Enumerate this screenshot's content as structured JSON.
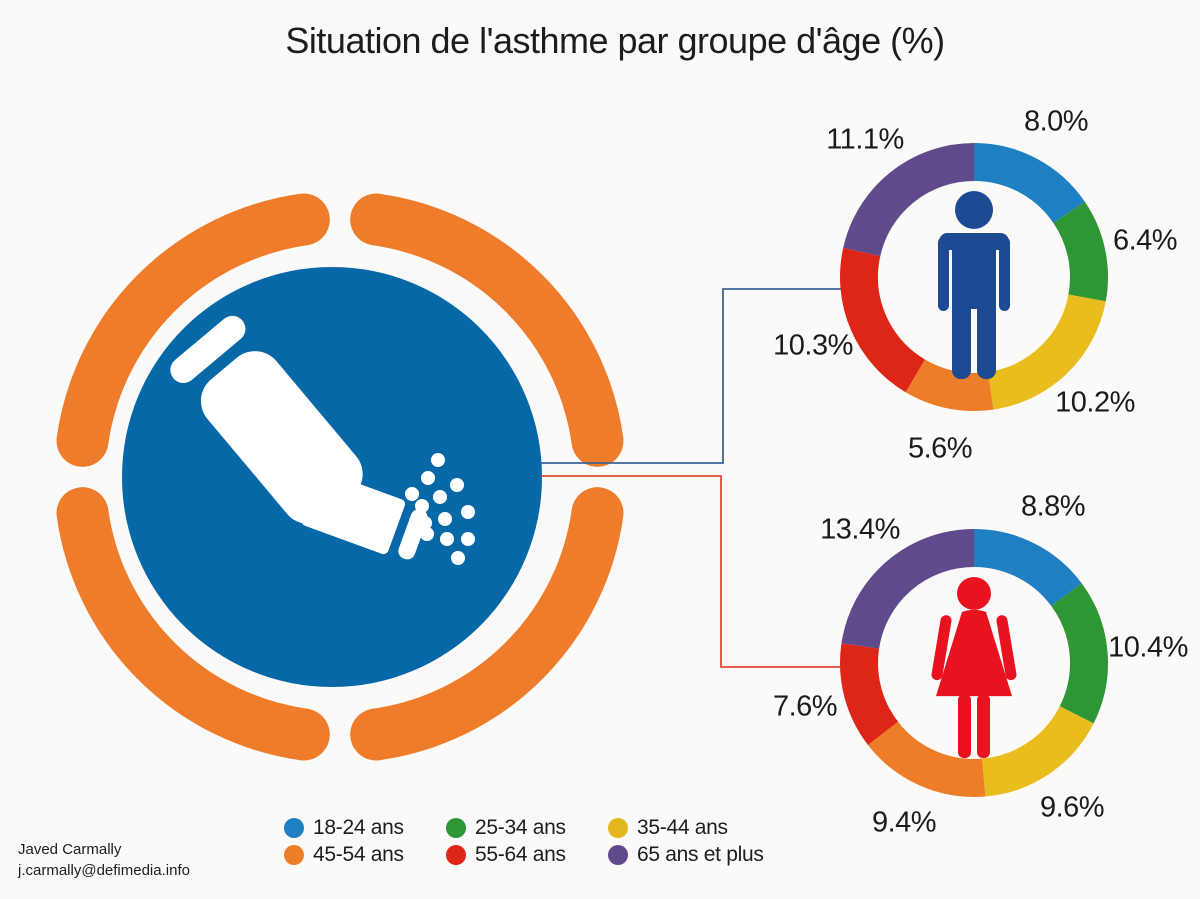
{
  "title": "Situation de l'asthme par groupe d'âge (%)",
  "credit": {
    "name": "Javed Carmally",
    "email": "j.carmally@defimedia.info"
  },
  "hero": {
    "icon": "inhaler-icon",
    "circle_color": "#0668a7",
    "ring_color": "#ee7c2b",
    "icon_color": "#ffffff"
  },
  "connectors": [
    {
      "to": "male-donut",
      "color": "#3c6393"
    },
    {
      "to": "female-donut",
      "color": "#e6493c"
    }
  ],
  "legend": {
    "items": [
      {
        "label": "18-24 ans",
        "color": "#1e7fc2"
      },
      {
        "label": "25-34 ans",
        "color": "#2f9636"
      },
      {
        "label": "35-44 ans",
        "color": "#e2b71e"
      },
      {
        "label": "45-54 ans",
        "color": "#ed7d28"
      },
      {
        "label": "55-64 ans",
        "color": "#dd2618"
      },
      {
        "label": "65 ans et plus",
        "color": "#5f4a8b"
      }
    ]
  },
  "chart_data": [
    {
      "type": "donut",
      "name": "male-donut",
      "center_icon": "male-icon",
      "icon_color": "#1c4b94",
      "categories": [
        "18-24 ans",
        "25-34 ans",
        "35-44 ans",
        "45-54 ans",
        "55-64 ans",
        "65 ans et plus"
      ],
      "values": [
        8.0,
        6.4,
        10.2,
        5.6,
        10.3,
        11.1
      ],
      "labels": [
        "8.0%",
        "6.4%",
        "10.2%",
        "5.6%",
        "10.3%",
        "11.1%"
      ],
      "colors": [
        "#1e7fc2",
        "#2f9636",
        "#eabd1e",
        "#ed7d28",
        "#dd2618",
        "#5f4a8b"
      ],
      "start_angle_deg": 0,
      "direction": "clockwise"
    },
    {
      "type": "donut",
      "name": "female-donut",
      "center_icon": "female-icon",
      "icon_color": "#e8131f",
      "categories": [
        "18-24 ans",
        "25-34 ans",
        "35-44 ans",
        "45-54 ans",
        "55-64 ans",
        "65 ans et plus"
      ],
      "values": [
        8.8,
        10.4,
        9.6,
        9.4,
        7.6,
        13.4
      ],
      "labels": [
        "8.8%",
        "10.4%",
        "9.6%",
        "9.4%",
        "7.6%",
        "13.4%"
      ],
      "colors": [
        "#1e7fc2",
        "#2f9636",
        "#eabd1e",
        "#ed7d28",
        "#dd2618",
        "#5f4a8b"
      ],
      "start_angle_deg": 0,
      "direction": "clockwise"
    }
  ]
}
